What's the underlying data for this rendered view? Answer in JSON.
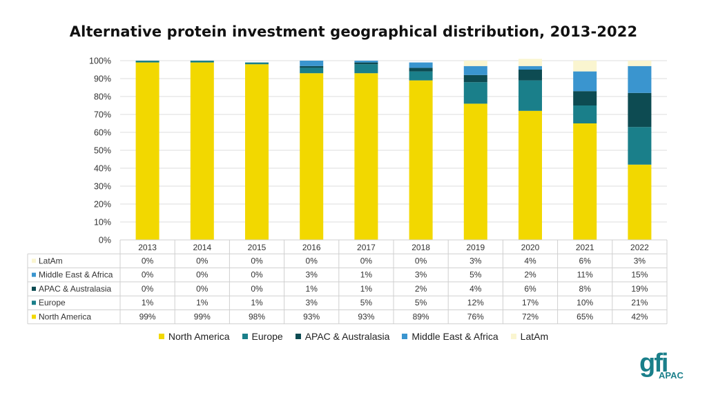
{
  "chart_data": {
    "type": "bar",
    "stacked": true,
    "title": "Alternative protein investment geographical distribution, 2013-2022",
    "categories": [
      "2013",
      "2014",
      "2015",
      "2016",
      "2017",
      "2018",
      "2019",
      "2020",
      "2021",
      "2022"
    ],
    "ylim": [
      0,
      100
    ],
    "yticks": [
      "0%",
      "10%",
      "20%",
      "30%",
      "40%",
      "50%",
      "60%",
      "70%",
      "80%",
      "90%",
      "100%"
    ],
    "grid": true,
    "legend_position": "bottom",
    "series": [
      {
        "name": "North America",
        "color": "#f2d800",
        "values": [
          99,
          99,
          98,
          93,
          93,
          89,
          76,
          72,
          65,
          42
        ],
        "labels": [
          "99%",
          "99%",
          "98%",
          "93%",
          "93%",
          "89%",
          "76%",
          "72%",
          "65%",
          "42%"
        ]
      },
      {
        "name": "Europe",
        "color": "#1a7f8a",
        "values": [
          1,
          1,
          1,
          3,
          5,
          5,
          12,
          17,
          10,
          21
        ],
        "labels": [
          "1%",
          "1%",
          "1%",
          "3%",
          "5%",
          "5%",
          "12%",
          "17%",
          "10%",
          "21%"
        ]
      },
      {
        "name": "APAC & Australasia",
        "color": "#0d4b52",
        "values": [
          0,
          0,
          0,
          1,
          1,
          2,
          4,
          6,
          8,
          19
        ],
        "labels": [
          "0%",
          "0%",
          "0%",
          "1%",
          "1%",
          "2%",
          "4%",
          "6%",
          "8%",
          "19%"
        ]
      },
      {
        "name": "Middle East & Africa",
        "color": "#3a95cf",
        "values": [
          0,
          0,
          0,
          3,
          1,
          3,
          5,
          2,
          11,
          15
        ],
        "labels": [
          "0%",
          "0%",
          "0%",
          "3%",
          "1%",
          "3%",
          "5%",
          "2%",
          "11%",
          "15%"
        ]
      },
      {
        "name": "LatAm",
        "color": "#faf5d0",
        "values": [
          0,
          0,
          0,
          0,
          0,
          0,
          3,
          4,
          6,
          3
        ],
        "labels": [
          "0%",
          "0%",
          "0%",
          "0%",
          "0%",
          "0%",
          "3%",
          "4%",
          "6%",
          "3%"
        ]
      }
    ]
  },
  "table_row_order": [
    "LatAm",
    "Middle East & Africa",
    "APAC & Australasia",
    "Europe",
    "North America"
  ],
  "logo": {
    "brand_text": "gfi",
    "sub_text": "APAC"
  }
}
